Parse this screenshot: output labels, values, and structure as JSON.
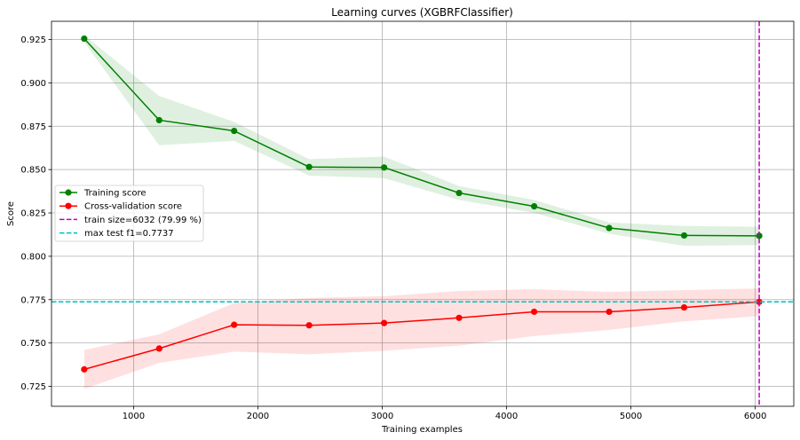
{
  "chart_data": {
    "type": "line",
    "title": "Learning curves (XGBRFClassifier)",
    "xlabel": "Training examples",
    "ylabel": "Score",
    "xlim": [
      340,
      6310
    ],
    "ylim": [
      0.7135,
      0.9355
    ],
    "x_ticks": [
      1000,
      2000,
      3000,
      4000,
      5000,
      6000
    ],
    "y_ticks": [
      0.725,
      0.75,
      0.775,
      0.8,
      0.825,
      0.85,
      0.875,
      0.9,
      0.925
    ],
    "grid": true,
    "legend_position": "center-left",
    "x": [
      603,
      1206,
      1809,
      2412,
      3015,
      3618,
      4222,
      4825,
      5428,
      6032
    ],
    "series": [
      {
        "name": "Training score",
        "color": "#008000",
        "values": [
          0.9255,
          0.8785,
          0.8723,
          0.8515,
          0.8512,
          0.8365,
          0.8288,
          0.8163,
          0.812,
          0.8118
        ],
        "band_lower": [
          0.9235,
          0.864,
          0.8665,
          0.8465,
          0.845,
          0.8325,
          0.825,
          0.813,
          0.806,
          0.8065
        ],
        "band_upper": [
          0.9275,
          0.8925,
          0.8775,
          0.856,
          0.8575,
          0.8405,
          0.8325,
          0.8195,
          0.8175,
          0.817
        ],
        "band_color": "#008000"
      },
      {
        "name": "Cross-validation score",
        "color": "#ff0000",
        "values": [
          0.7348,
          0.7468,
          0.7605,
          0.7602,
          0.7615,
          0.7645,
          0.768,
          0.768,
          0.7705,
          0.7737
        ],
        "band_lower": [
          0.7235,
          0.7385,
          0.745,
          0.7435,
          0.7455,
          0.7485,
          0.754,
          0.7575,
          0.7625,
          0.7655
        ],
        "band_upper": [
          0.746,
          0.755,
          0.773,
          0.776,
          0.777,
          0.78,
          0.781,
          0.7795,
          0.7805,
          0.7815
        ],
        "band_color": "#ff0000"
      }
    ],
    "reference_lines": [
      {
        "name": "train size=6032 (79.99 %)",
        "orientation": "vertical",
        "value": 6032,
        "color": "#bf00bf"
      },
      {
        "name": "max test f1=0.7737",
        "orientation": "horizontal",
        "value": 0.7737,
        "color": "#00bfbf"
      }
    ]
  }
}
